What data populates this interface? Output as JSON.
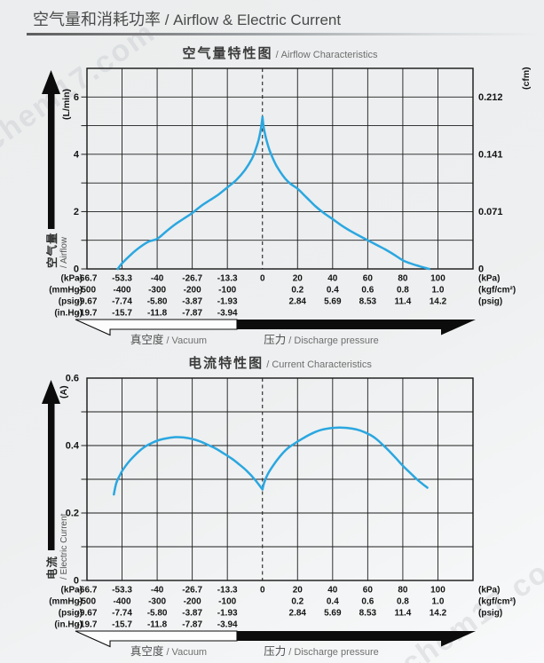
{
  "header": {
    "title_zh": "空气量和消耗功率",
    "title_en": " / Airflow & Electric Current"
  },
  "watermark": {
    "text": "chem17.com"
  },
  "x_axis": {
    "description": "shared dual horizontal axis: vacuum (left of 0) and discharge pressure (right of 0)",
    "zero_index": 5,
    "rows": [
      {
        "unit_left": "(kPa)",
        "unit_right": "(kPa)",
        "values": [
          "-66.7",
          "-53.3",
          "-40",
          "-26.7",
          "-13.3",
          "0",
          "20",
          "40",
          "60",
          "80",
          "100"
        ]
      },
      {
        "unit_left": "(mmHg)",
        "unit_right": "(kgf/cm²)",
        "values": [
          "-500",
          "-400",
          "-300",
          "-200",
          "-100",
          "",
          "0.2",
          "0.4",
          "0.6",
          "0.8",
          "1.0"
        ]
      },
      {
        "unit_left": "(psig)",
        "unit_right": "(psig)",
        "values": [
          "-9.67",
          "-7.74",
          "-5.80",
          "-3.87",
          "-1.93",
          "",
          "2.84",
          "5.69",
          "8.53",
          "11.4",
          "14.2"
        ]
      },
      {
        "unit_left": "(in.Hg)",
        "unit_right": "",
        "values": [
          "-19.7",
          "-15.7",
          "-11.8",
          "-7.87",
          "-3.94",
          "",
          "",
          "",
          "",
          "",
          ""
        ]
      }
    ],
    "vacuum_label_zh": "真空度",
    "vacuum_label_en": " / Vacuum",
    "pressure_label_zh": "压力",
    "pressure_label_en": " / Discharge pressure"
  },
  "chart_data": [
    {
      "type": "line",
      "title_zh": "空气量特性图",
      "title_en": " / Airflow Characteristics",
      "x_unit": "kPa",
      "x_ticks_kpa": [
        -66.7,
        -53.3,
        -40,
        -26.7,
        -13.3,
        0,
        20,
        40,
        60,
        80,
        100
      ],
      "y_axis": {
        "unit": "(L/min)",
        "label_zh": "空气量",
        "label_en": "/ Airflow",
        "max": 7,
        "grid_step": 1,
        "ticks": [
          {
            "v": 0,
            "label": "0"
          },
          {
            "v": 2,
            "label": "2"
          },
          {
            "v": 4,
            "label": "4"
          },
          {
            "v": 6,
            "label": "6"
          }
        ]
      },
      "y_axis_right": {
        "unit": "(cfm)",
        "ticks": [
          {
            "v": 0,
            "label": "0"
          },
          {
            "v": 2,
            "label": "0.071"
          },
          {
            "v": 4,
            "label": "0.141"
          },
          {
            "v": 6,
            "label": "0.212"
          }
        ]
      },
      "series": [
        {
          "name": "空气量 / Airflow",
          "color": "#2aa7e0",
          "segments": [
            [
              [
                -55,
                0
              ],
              [
                -53.3,
                0.2
              ],
              [
                -50,
                0.5
              ],
              [
                -46.7,
                0.75
              ],
              [
                -43.3,
                0.95
              ],
              [
                -40,
                1.05
              ],
              [
                -36.7,
                1.3
              ],
              [
                -33.3,
                1.55
              ],
              [
                -30,
                1.75
              ],
              [
                -26.7,
                1.95
              ],
              [
                -23.3,
                2.2
              ],
              [
                -20,
                2.4
              ],
              [
                -16.7,
                2.6
              ],
              [
                -13.3,
                2.85
              ],
              [
                -10,
                3.1
              ],
              [
                -6.7,
                3.45
              ],
              [
                -4,
                3.85
              ],
              [
                -2.5,
                4.2
              ],
              [
                -1.5,
                4.5
              ],
              [
                -0.7,
                4.85
              ],
              [
                0,
                5.3
              ]
            ],
            [
              [
                0,
                5.3
              ],
              [
                0.7,
                4.95
              ],
              [
                1.5,
                4.7
              ],
              [
                2.5,
                4.45
              ],
              [
                4,
                4.15
              ],
              [
                6,
                3.85
              ],
              [
                8,
                3.6
              ],
              [
                10,
                3.4
              ],
              [
                13,
                3.15
              ],
              [
                16,
                2.97
              ],
              [
                20,
                2.8
              ],
              [
                25,
                2.5
              ],
              [
                30,
                2.2
              ],
              [
                35,
                1.95
              ],
              [
                40,
                1.74
              ],
              [
                45,
                1.52
              ],
              [
                50,
                1.33
              ],
              [
                55,
                1.16
              ],
              [
                60,
                1.0
              ],
              [
                65,
                0.84
              ],
              [
                70,
                0.68
              ],
              [
                75,
                0.5
              ],
              [
                80,
                0.3
              ],
              [
                84,
                0.2
              ],
              [
                88,
                0.12
              ],
              [
                92,
                0.05
              ],
              [
                95,
                0
              ]
            ]
          ]
        }
      ]
    },
    {
      "type": "line",
      "title_zh": "电流特性图",
      "title_en": " / Current Characteristics",
      "x_unit": "kPa",
      "x_ticks_kpa": [
        -66.7,
        -53.3,
        -40,
        -26.7,
        -13.3,
        0,
        20,
        40,
        60,
        80,
        100
      ],
      "y_axis": {
        "unit": "(A)",
        "label_zh": "电流",
        "label_en": "/ Electric Current",
        "max": 0.6,
        "grid_step": 0.1,
        "ticks": [
          {
            "v": 0,
            "label": "0"
          },
          {
            "v": 0.2,
            "label": "0.2"
          },
          {
            "v": 0.4,
            "label": "0.4"
          },
          {
            "v": 0.6,
            "label": "0.6"
          }
        ]
      },
      "y_axis_right": null,
      "series": [
        {
          "name": "电流 / Electric Current",
          "color": "#2aa7e0",
          "segments": [
            [
              [
                -56.5,
                0.255
              ],
              [
                -55.5,
                0.29
              ],
              [
                -54,
                0.315
              ],
              [
                -53.3,
                0.325
              ],
              [
                -51,
                0.35
              ],
              [
                -48,
                0.375
              ],
              [
                -45,
                0.395
              ],
              [
                -42,
                0.408
              ],
              [
                -39,
                0.417
              ],
              [
                -36,
                0.422
              ],
              [
                -33,
                0.425
              ],
              [
                -30,
                0.424
              ],
              [
                -27,
                0.42
              ],
              [
                -24,
                0.413
              ],
              [
                -21,
                0.403
              ],
              [
                -18,
                0.392
              ],
              [
                -15,
                0.378
              ],
              [
                -12,
                0.363
              ],
              [
                -9,
                0.345
              ],
              [
                -6,
                0.325
              ],
              [
                -3,
                0.3
              ],
              [
                -1,
                0.28
              ],
              [
                0,
                0.27
              ]
            ],
            [
              [
                0,
                0.27
              ],
              [
                1,
                0.29
              ],
              [
                3,
                0.315
              ],
              [
                6,
                0.34
              ],
              [
                10,
                0.368
              ],
              [
                14,
                0.39
              ],
              [
                18,
                0.405
              ],
              [
                22,
                0.418
              ],
              [
                26,
                0.43
              ],
              [
                30,
                0.44
              ],
              [
                34,
                0.447
              ],
              [
                38,
                0.451
              ],
              [
                42,
                0.453
              ],
              [
                46,
                0.453
              ],
              [
                50,
                0.451
              ],
              [
                54,
                0.447
              ],
              [
                58,
                0.44
              ],
              [
                62,
                0.43
              ],
              [
                65,
                0.419
              ],
              [
                68,
                0.405
              ],
              [
                72,
                0.385
              ],
              [
                76,
                0.363
              ],
              [
                80,
                0.34
              ],
              [
                84,
                0.32
              ],
              [
                88,
                0.3
              ],
              [
                91,
                0.287
              ],
              [
                94,
                0.275
              ]
            ]
          ]
        }
      ]
    }
  ]
}
